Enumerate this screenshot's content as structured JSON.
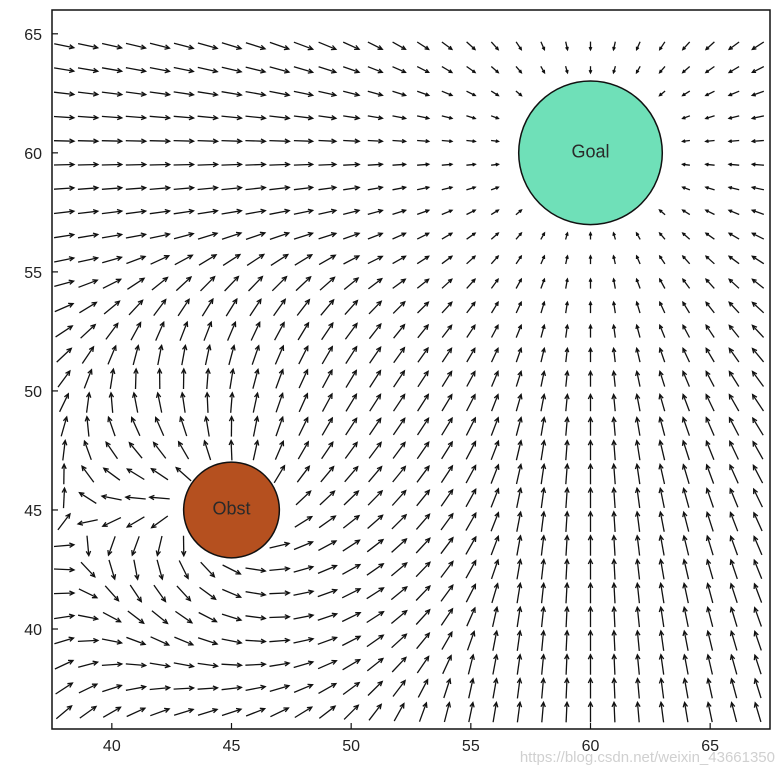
{
  "chart_data": {
    "type": "quiver",
    "title": "",
    "xlabel": "",
    "ylabel": "",
    "xlim": [
      37.5,
      67.5
    ],
    "ylim": [
      35.8,
      66
    ],
    "grid": false,
    "xticks": [
      40,
      45,
      50,
      55,
      60,
      65
    ],
    "yticks": [
      40,
      45,
      50,
      55,
      60,
      65
    ],
    "field": {
      "x_start": 38,
      "x_end": 67,
      "y_start": 36.5,
      "y_end": 65,
      "step": 1,
      "arrow_color": "#111111"
    },
    "goal": {
      "label": "Goal",
      "center": [
        60,
        60
      ],
      "radius": 3,
      "color": "#6fe0b8"
    },
    "obstacle": {
      "label": "Obst",
      "center": [
        45,
        45
      ],
      "radius": 2,
      "color": "#b5501f"
    }
  },
  "watermark": "https://blog.csdn.net/weixin_43661350"
}
